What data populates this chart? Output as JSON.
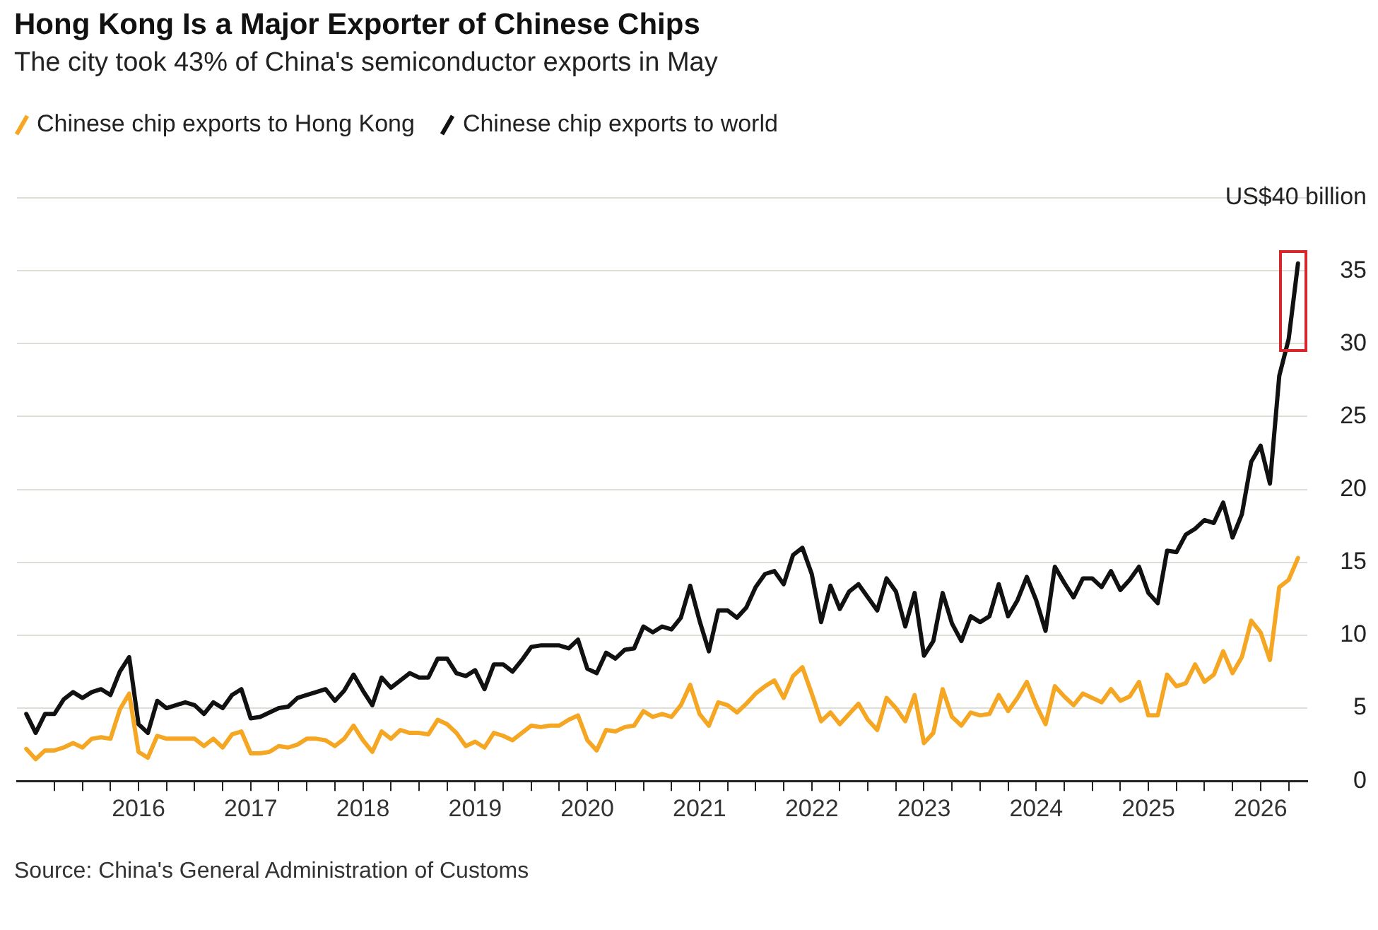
{
  "chart_data": {
    "type": "line",
    "title": "Hong Kong Is a Major Exporter of Chinese Chips",
    "subtitle": "The city took 43% of China's semiconductor exports in May",
    "annotations": [
      "Source: China's General Administration of Customs"
    ],
    "x": [
      "2015-01",
      "2015-02",
      "2015-03",
      "2015-04",
      "2015-05",
      "2015-06",
      "2015-07",
      "2015-08",
      "2015-09",
      "2015-10",
      "2015-11",
      "2015-12",
      "2016-01",
      "2016-02",
      "2016-03",
      "2016-04",
      "2016-05",
      "2016-06",
      "2016-07",
      "2016-08",
      "2016-09",
      "2016-10",
      "2016-11",
      "2016-12",
      "2017-01",
      "2017-02",
      "2017-03",
      "2017-04",
      "2017-05",
      "2017-06",
      "2017-07",
      "2017-08",
      "2017-09",
      "2017-10",
      "2017-11",
      "2017-12",
      "2018-01",
      "2018-02",
      "2018-03",
      "2018-04",
      "2018-05",
      "2018-06",
      "2018-07",
      "2018-08",
      "2018-09",
      "2018-10",
      "2018-11",
      "2018-12",
      "2019-01",
      "2019-02",
      "2019-03",
      "2019-04",
      "2019-05",
      "2019-06",
      "2019-07",
      "2019-08",
      "2019-09",
      "2019-10",
      "2019-11",
      "2019-12",
      "2020-01",
      "2020-02",
      "2020-03",
      "2020-04",
      "2020-05",
      "2020-06",
      "2020-07",
      "2020-08",
      "2020-09",
      "2020-10",
      "2020-11",
      "2020-12",
      "2021-01",
      "2021-02",
      "2021-03",
      "2021-04",
      "2021-05",
      "2021-06",
      "2021-07",
      "2021-08",
      "2021-09",
      "2021-10",
      "2021-11",
      "2021-12",
      "2022-01",
      "2022-02",
      "2022-03",
      "2022-04",
      "2022-05",
      "2022-06",
      "2022-07",
      "2022-08",
      "2022-09",
      "2022-10",
      "2022-11",
      "2022-12",
      "2023-01",
      "2023-02",
      "2023-03",
      "2023-04",
      "2023-05",
      "2023-06",
      "2023-07",
      "2023-08",
      "2023-09",
      "2023-10",
      "2023-11",
      "2023-12",
      "2024-01",
      "2024-02",
      "2024-03",
      "2024-04",
      "2024-05",
      "2024-06",
      "2024-07",
      "2024-08",
      "2024-09",
      "2024-10",
      "2024-11",
      "2024-12",
      "2025-01",
      "2025-02",
      "2025-03",
      "2025-04",
      "2025-05",
      "2025-06",
      "2025-07",
      "2025-08",
      "2025-09",
      "2025-10",
      "2025-11",
      "2025-12",
      "2026-01",
      "2026-02",
      "2026-03",
      "2026-04",
      "2026-05"
    ],
    "series": [
      {
        "name": "Chinese chip exports to Hong Kong",
        "color": "#f5a623",
        "values": [
          2.2,
          1.5,
          2.1,
          2.1,
          2.3,
          2.6,
          2.3,
          2.9,
          3.0,
          2.9,
          4.9,
          6.0,
          2.0,
          1.6,
          3.1,
          2.9,
          2.9,
          2.9,
          2.9,
          2.4,
          2.9,
          2.3,
          3.2,
          3.4,
          1.9,
          1.9,
          2.0,
          2.4,
          2.3,
          2.5,
          2.9,
          2.9,
          2.8,
          2.4,
          2.9,
          3.8,
          2.8,
          2.0,
          3.4,
          2.9,
          3.5,
          3.3,
          3.3,
          3.2,
          4.2,
          3.9,
          3.3,
          2.4,
          2.7,
          2.3,
          3.3,
          3.1,
          2.8,
          3.3,
          3.8,
          3.7,
          3.8,
          3.8,
          4.2,
          4.5,
          2.8,
          2.1,
          3.5,
          3.4,
          3.7,
          3.8,
          4.8,
          4.4,
          4.6,
          4.4,
          5.2,
          6.6,
          4.6,
          3.8,
          5.4,
          5.2,
          4.7,
          5.3,
          6.0,
          6.5,
          6.9,
          5.7,
          7.2,
          7.8,
          6.0,
          4.1,
          4.7,
          3.9,
          4.6,
          5.3,
          4.2,
          3.5,
          5.7,
          5.0,
          4.1,
          5.9,
          2.6,
          3.3,
          6.3,
          4.4,
          3.8,
          4.7,
          4.5,
          4.6,
          5.9,
          4.8,
          5.7,
          6.8,
          5.2,
          3.9,
          6.5,
          5.8,
          5.2,
          6.0,
          5.7,
          5.4,
          6.3,
          5.5,
          5.8,
          6.8,
          4.5,
          4.5,
          7.3,
          6.5,
          6.7,
          8.0,
          6.8,
          7.3,
          8.9,
          7.4,
          8.5,
          11.0,
          10.2,
          8.3,
          13.3,
          13.8,
          15.3
        ]
      },
      {
        "name": "Chinese chip exports to world",
        "color": "#111111",
        "values": [
          4.6,
          3.3,
          4.6,
          4.6,
          5.6,
          6.1,
          5.7,
          6.1,
          6.3,
          5.9,
          7.5,
          8.5,
          3.9,
          3.3,
          5.5,
          5.0,
          5.2,
          5.4,
          5.2,
          4.6,
          5.4,
          5.0,
          5.9,
          6.3,
          4.3,
          4.4,
          4.7,
          5.0,
          5.1,
          5.7,
          5.9,
          6.1,
          6.3,
          5.5,
          6.2,
          7.3,
          6.2,
          5.2,
          7.1,
          6.4,
          6.9,
          7.4,
          7.1,
          7.1,
          8.4,
          8.4,
          7.4,
          7.2,
          7.6,
          6.3,
          8.0,
          8.0,
          7.5,
          8.3,
          9.2,
          9.3,
          9.3,
          9.3,
          9.1,
          9.7,
          7.7,
          7.4,
          8.8,
          8.4,
          9.0,
          9.1,
          10.6,
          10.2,
          10.6,
          10.4,
          11.2,
          13.4,
          11.0,
          8.9,
          11.7,
          11.7,
          11.2,
          11.9,
          13.3,
          14.2,
          14.4,
          13.5,
          15.5,
          16.0,
          14.2,
          10.9,
          13.4,
          11.8,
          13.0,
          13.5,
          12.6,
          11.7,
          13.9,
          13.0,
          10.6,
          12.9,
          8.6,
          9.6,
          12.9,
          10.8,
          9.6,
          11.3,
          10.9,
          11.3,
          13.5,
          11.3,
          12.4,
          14.0,
          12.4,
          10.3,
          14.7,
          13.6,
          12.6,
          13.9,
          13.9,
          13.3,
          14.4,
          13.1,
          13.8,
          14.7,
          12.9,
          12.2,
          15.8,
          15.7,
          16.9,
          17.3,
          17.9,
          17.7,
          19.1,
          16.7,
          18.3,
          21.9,
          23.0,
          20.4,
          27.8,
          30.3,
          35.5
        ]
      }
    ],
    "xlim": [
      "2014-12",
      "2026-06"
    ],
    "xticks": [
      {
        "value": "2015-04",
        "label": null
      },
      {
        "value": "2015-07",
        "label": null
      },
      {
        "value": "2015-10",
        "label": null
      },
      "2016",
      {
        "value": "2016-04",
        "label": null
      },
      {
        "value": "2016-07",
        "label": null
      },
      {
        "value": "2016-10",
        "label": null
      },
      "2017",
      {
        "value": "2017-04",
        "label": null
      },
      {
        "value": "2017-07",
        "label": null
      },
      {
        "value": "2017-10",
        "label": null
      },
      "2018",
      {
        "value": "2018-04",
        "label": null
      },
      {
        "value": "2018-07",
        "label": null
      },
      {
        "value": "2018-10",
        "label": null
      },
      "2019",
      {
        "value": "2019-04",
        "label": null
      },
      {
        "value": "2019-07",
        "label": null
      },
      {
        "value": "2019-10",
        "label": null
      },
      "2020",
      {
        "value": "2020-04",
        "label": null
      },
      {
        "value": "2020-07",
        "label": null
      },
      {
        "value": "2020-10",
        "label": null
      },
      "2021",
      {
        "value": "2021-04",
        "label": null
      },
      {
        "value": "2021-07",
        "label": null
      },
      {
        "value": "2021-10",
        "label": null
      },
      "2022",
      {
        "value": "2022-04",
        "label": null
      },
      {
        "value": "2022-07",
        "label": null
      },
      {
        "value": "2022-10",
        "label": null
      },
      "2023",
      {
        "value": "2023-04",
        "label": null
      },
      {
        "value": "2023-07",
        "label": null
      },
      {
        "value": "2023-10",
        "label": null
      },
      "2024",
      {
        "value": "2024-04",
        "label": null
      },
      {
        "value": "2024-07",
        "label": null
      },
      {
        "value": "2024-10",
        "label": null
      },
      "2025",
      {
        "value": "2025-04",
        "label": null
      },
      {
        "value": "2025-07",
        "label": null
      },
      {
        "value": "2025-10",
        "label": null
      },
      "2026",
      {
        "value": "2026-04",
        "label": null
      }
    ],
    "ylim": [
      0,
      40
    ],
    "yticks": [
      0,
      5,
      10,
      15,
      20,
      25,
      30,
      35,
      {
        "value": 40,
        "label": "US$40 billion"
      }
    ],
    "grid": "y",
    "legend": "top left",
    "marker": "none",
    "line_style": "solid"
  }
}
